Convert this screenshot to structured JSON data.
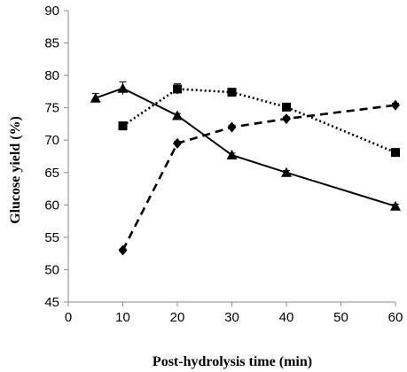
{
  "chart_data": {
    "type": "line",
    "title": "",
    "xlabel": "Post-hydrolysis time (min)",
    "ylabel": "Glucose yield (%)",
    "xlim": [
      0,
      60
    ],
    "ylim": [
      45,
      90
    ],
    "xticks": [
      0,
      10,
      20,
      30,
      40,
      50,
      60
    ],
    "yticks": [
      45,
      50,
      55,
      60,
      65,
      70,
      75,
      80,
      85,
      90
    ],
    "grid": false,
    "legend": "none",
    "series": [
      {
        "marker": "triangle",
        "line_style": "solid",
        "color": "#000000",
        "x": [
          5,
          10,
          20,
          30,
          40,
          60
        ],
        "y": [
          76.5,
          78.0,
          73.8,
          67.7,
          65.0,
          59.8
        ],
        "error": [
          0.7,
          1.0,
          0.3,
          0.3,
          0.3,
          0.3
        ]
      },
      {
        "marker": "square",
        "line_style": "dotted",
        "color": "#000000",
        "x": [
          10,
          20,
          30,
          40,
          60
        ],
        "y": [
          72.2,
          77.9,
          77.4,
          75.1,
          68.1
        ],
        "error": [
          0.3,
          0.8,
          0.3,
          0.3,
          0.3
        ]
      },
      {
        "marker": "diamond",
        "line_style": "dashed",
        "color": "#000000",
        "x": [
          10,
          20,
          30,
          40,
          60
        ],
        "y": [
          53.0,
          69.5,
          72.0,
          73.3,
          75.4
        ],
        "error": [
          0.2,
          0.3,
          0.3,
          0.3,
          0.3
        ]
      }
    ]
  }
}
